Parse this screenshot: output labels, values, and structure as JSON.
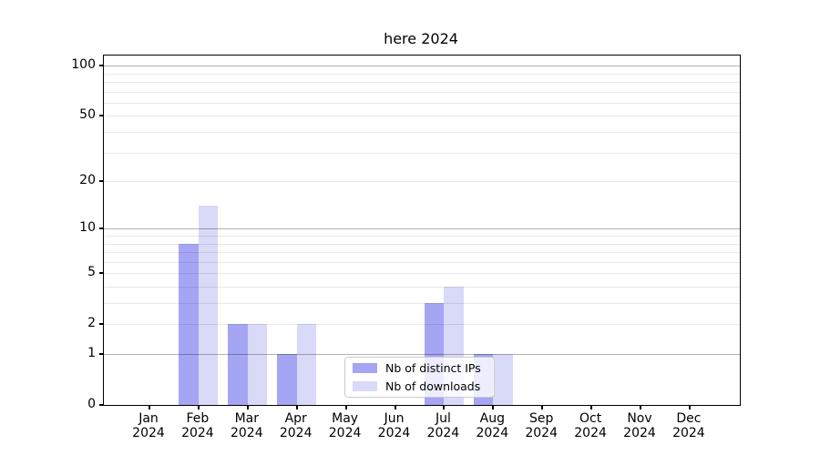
{
  "chart_data": {
    "type": "bar",
    "title": "here 2024",
    "scale": "log1p",
    "ylim": [
      0,
      115
    ],
    "yticks": [
      0,
      1,
      2,
      5,
      10,
      20,
      50,
      100
    ],
    "grid_major": [
      1,
      10,
      100
    ],
    "grid_minor": [
      2,
      3,
      4,
      5,
      6,
      7,
      8,
      9,
      20,
      30,
      40,
      50,
      60,
      70,
      80,
      90
    ],
    "grid": "horizontal",
    "categories": [
      "Jan",
      "Feb",
      "Mar",
      "Apr",
      "May",
      "Jun",
      "Jul",
      "Aug",
      "Sep",
      "Oct",
      "Nov",
      "Dec"
    ],
    "year_label": "2024",
    "series": [
      {
        "name": "Nb of distinct IPs",
        "color": "#a5a5f4",
        "values": [
          0,
          8,
          2,
          1,
          0,
          0,
          3,
          1,
          0,
          0,
          0,
          0
        ]
      },
      {
        "name": "Nb of downloads",
        "color": "#d9d9f8",
        "values": [
          0,
          14,
          2,
          2,
          0,
          0,
          4,
          1,
          0,
          0,
          0,
          0
        ]
      }
    ],
    "legend_position": "lower center",
    "colors": {
      "grid_major": "#b3b3b3",
      "grid_minor": "#e8e8e8",
      "spine": "#000000",
      "legend_border": "#cccccc",
      "background": "#ffffff"
    }
  }
}
